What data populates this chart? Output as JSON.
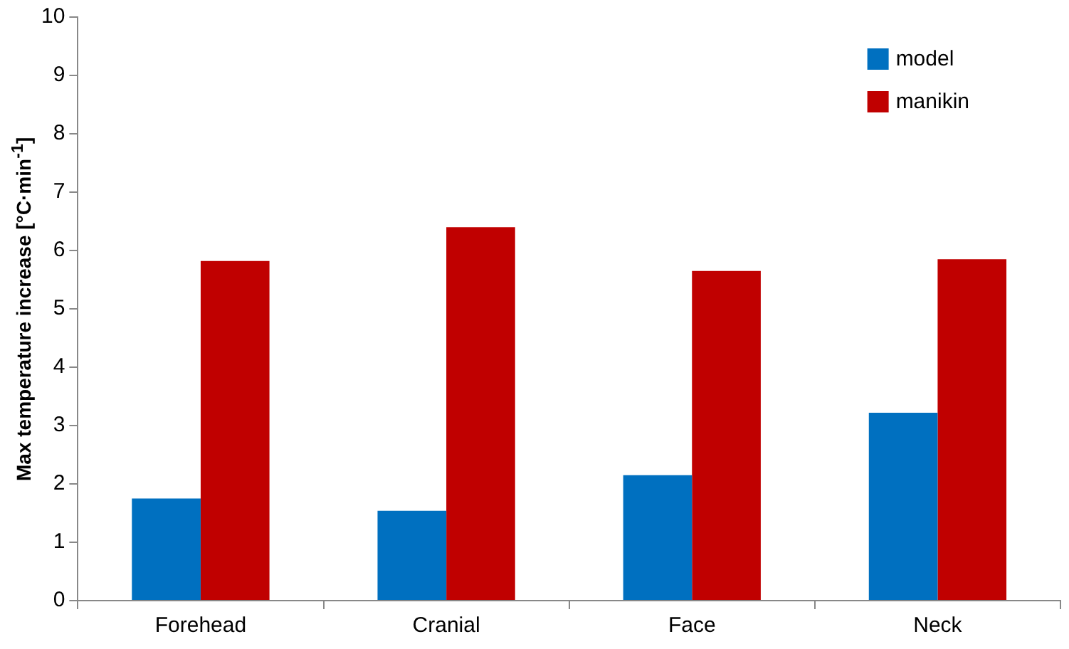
{
  "chart_data": {
    "type": "bar",
    "ylabel": "Max temperature increase [°C·min$^{-1}$]",
    "categories": [
      "Forehead",
      "Cranial",
      "Face",
      "Neck"
    ],
    "series": [
      {
        "name": "model",
        "color": "#0070c0",
        "values": [
          1.75,
          1.54,
          2.15,
          3.22
        ]
      },
      {
        "name": "manikin",
        "color": "#c00000",
        "values": [
          5.82,
          6.4,
          5.65,
          5.85
        ]
      }
    ],
    "ylim": [
      0,
      10
    ],
    "yticks": [
      0,
      1,
      2,
      3,
      4,
      5,
      6,
      7,
      8,
      9,
      10
    ],
    "grid": false,
    "legend": "top right"
  }
}
